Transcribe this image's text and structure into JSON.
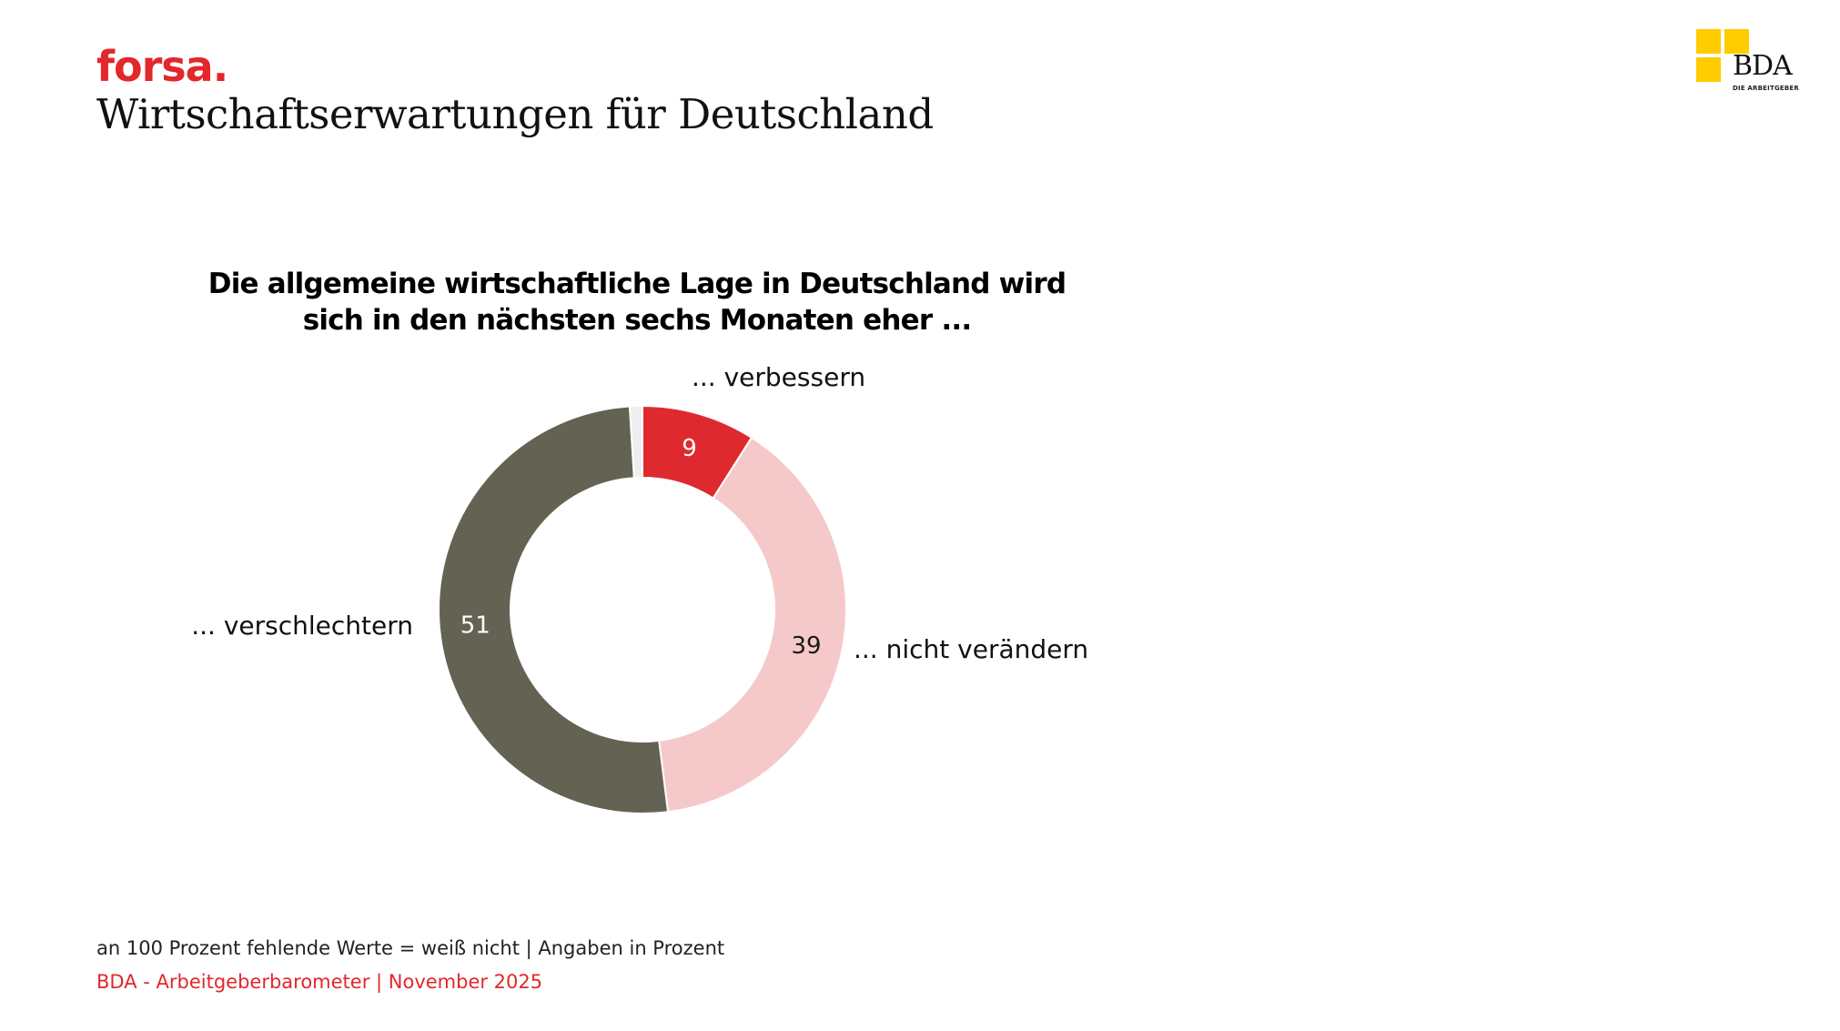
{
  "header": {
    "logo_text": "forsa.",
    "title": "Wirtschaftserwartungen für Deutschland"
  },
  "brand_logo": {
    "wordmark": "BDA",
    "tagline": "DIE ARBEITGEBER"
  },
  "chart_data": {
    "type": "pie",
    "subtype": "donut",
    "title_lines": [
      "Die allgemeine wirtschaftliche Lage in Deutschland wird",
      "sich in den nächsten sechs Monaten eher ..."
    ],
    "slices": [
      {
        "label": "... verbessern",
        "value": 9,
        "color": "#de2a2e",
        "value_text_color": "#ffffff"
      },
      {
        "label": "... nicht verändern",
        "value": 39,
        "color": "#f5c9c9",
        "value_text_color": "#1a1a1a"
      },
      {
        "label": "... verschlechtern",
        "value": 51,
        "color": "#646253",
        "value_text_color": "#ffffff"
      },
      {
        "label": "",
        "value": 1,
        "color": "#eeeeee",
        "value_text_color": "#1a1a1a",
        "show_value": false
      }
    ],
    "legend": "none",
    "data_labels": "inside"
  },
  "footer": {
    "note": "an 100 Prozent fehlende Werte = weiß nicht | Angaben in Prozent",
    "source": "BDA - Arbeitgeberbarometer | November 2025"
  },
  "colors": {
    "forsa_red": "#e3272b",
    "bda_yellow": "#ffcc00"
  }
}
